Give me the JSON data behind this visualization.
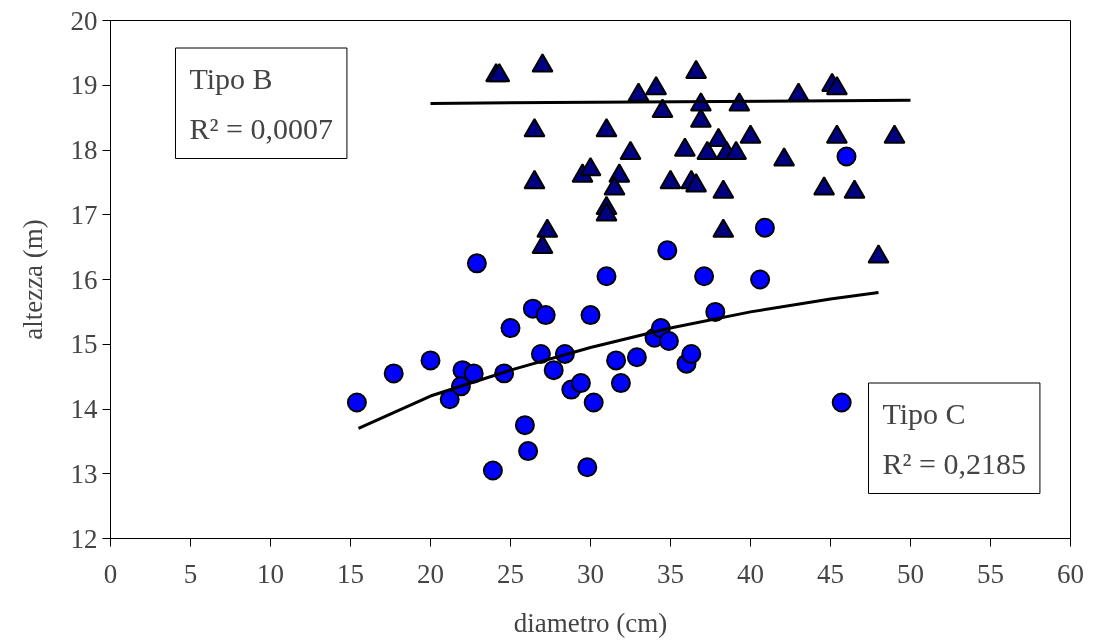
{
  "chart_data": {
    "type": "scatter",
    "xlabel": "diametro (cm)",
    "ylabel": "altezza (m)",
    "xlim": [
      0,
      60
    ],
    "xticks": [
      0,
      5,
      10,
      15,
      20,
      25,
      30,
      35,
      40,
      45,
      50,
      55,
      60
    ],
    "ylim": [
      12,
      20
    ],
    "yticks": [
      12,
      13,
      14,
      15,
      16,
      17,
      18,
      19,
      20
    ],
    "grid": false,
    "annotations": [
      "Tipo B\nR² = 0,0007",
      "Tipo C\nR² = 0,2185"
    ],
    "series": [
      {
        "marker": "triangle",
        "color": "#000080",
        "x": [
          24.1,
          24.3,
          27,
          26.5,
          31,
          33,
          34.1,
          34.5,
          36.6,
          26.5,
          29.5,
          30,
          32.5,
          31.8,
          31.5,
          31,
          31,
          35,
          36.3,
          36.6,
          35.9,
          37.3,
          27.3,
          27,
          36.9,
          36.9,
          39.3,
          43,
          45.1,
          45.4,
          38,
          40,
          45.4,
          49,
          38.5,
          39.1,
          42.1,
          38.3,
          44.6,
          46.5,
          38.3,
          48
        ],
        "values": [
          19.15,
          19.15,
          19.3,
          18.3,
          18.3,
          18.85,
          18.95,
          18.6,
          19.2,
          17.5,
          17.6,
          17.7,
          17.95,
          17.6,
          17.4,
          17.1,
          17.0,
          17.5,
          17.5,
          17.45,
          18.0,
          17.95,
          16.75,
          16.5,
          18.7,
          18.45,
          18.7,
          18.85,
          19.0,
          18.95,
          18.15,
          18.2,
          18.2,
          18.2,
          17.95,
          17.95,
          17.85,
          17.35,
          17.4,
          17.35,
          16.75,
          16.35
        ]
      },
      {
        "marker": "circle",
        "color": "#0000ff",
        "x": [
          15.4,
          17.7,
          20,
          22,
          21.9,
          21.2,
          22.7,
          22.9,
          24.6,
          25,
          25.9,
          26.1,
          23.9,
          26.4,
          27.2,
          26.9,
          27.7,
          28.4,
          28.8,
          29.4,
          29.8,
          30,
          30.2,
          31,
          31.6,
          31.9,
          32.9,
          34,
          34.4,
          34.8,
          34.9,
          36,
          36.3,
          37.1,
          37.8,
          40.9,
          40.6,
          45.7,
          46
        ],
        "values": [
          14.1,
          14.55,
          14.75,
          14.6,
          14.35,
          14.15,
          14.55,
          16.25,
          14.55,
          15.25,
          13.75,
          13.35,
          13.05,
          15.55,
          15.45,
          14.85,
          14.6,
          14.85,
          14.3,
          14.4,
          13.1,
          15.45,
          14.1,
          16.05,
          14.75,
          14.4,
          14.8,
          15.1,
          15.25,
          16.45,
          15.05,
          14.7,
          14.85,
          16.05,
          15.5,
          16.8,
          16.0,
          14.1,
          17.9
        ]
      },
      {
        "type": "line",
        "color": "#000000",
        "line_style": "solid",
        "x": [
          20,
          50
        ],
        "values": [
          18.72,
          18.77
        ]
      },
      {
        "type": "line",
        "color": "#000000",
        "line_style": "solid",
        "x": [
          15.5,
          20,
          25,
          30,
          35,
          40,
          45,
          48
        ],
        "values": [
          13.7,
          14.2,
          14.6,
          14.95,
          15.25,
          15.5,
          15.7,
          15.8
        ]
      }
    ]
  }
}
